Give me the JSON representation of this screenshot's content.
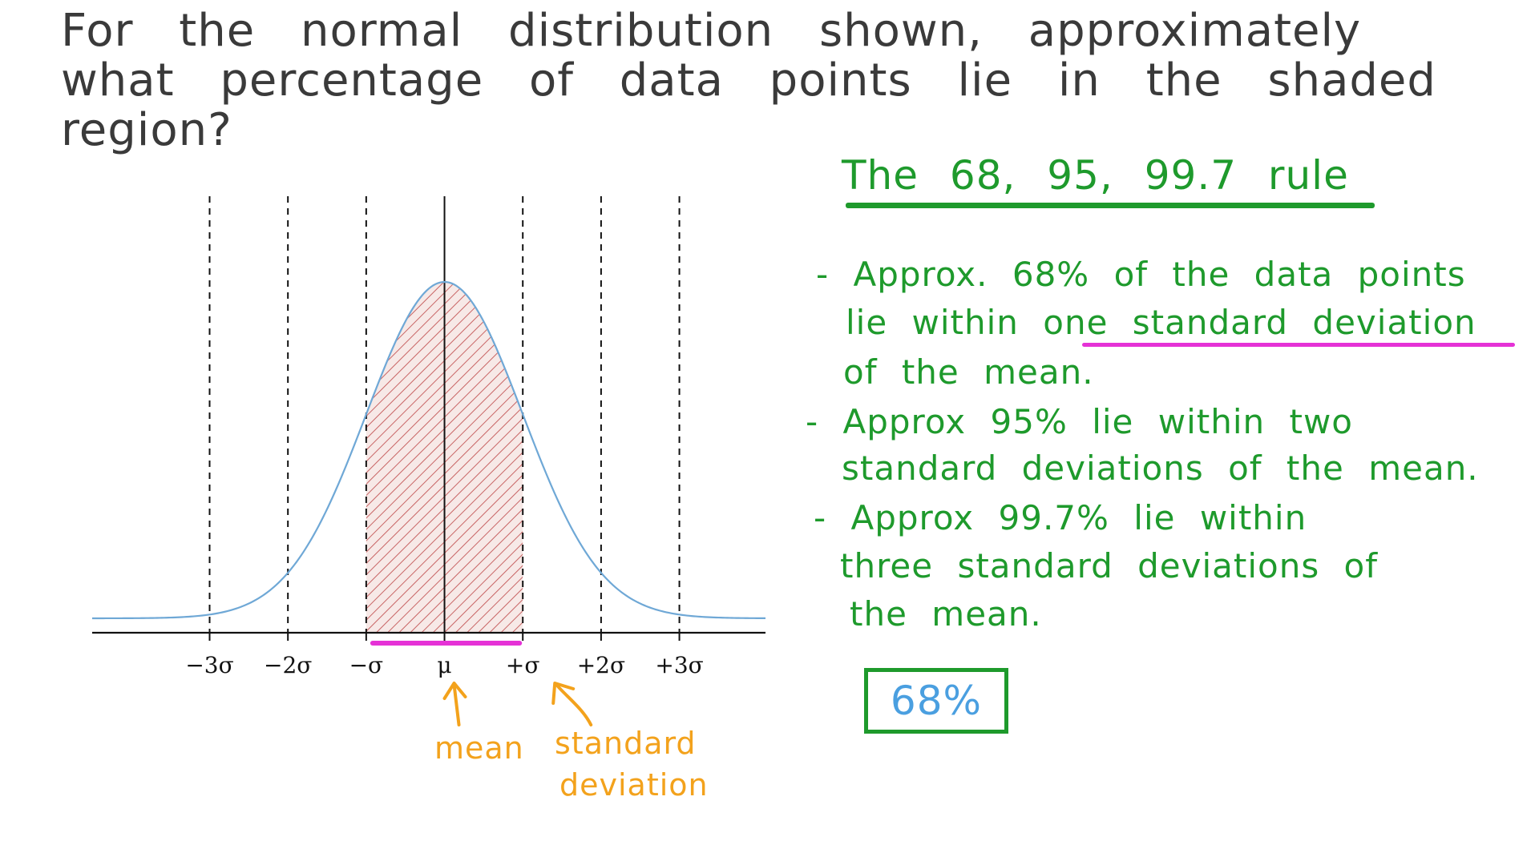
{
  "question": "For the normal distribution shown, approximately what percentage of data points lie in the shaded region?",
  "chart_data": {
    "type": "area",
    "title": "",
    "xlabel": "",
    "ylabel": "",
    "distribution": "normal",
    "mean": 0,
    "sd": 1,
    "xlim": [
      -4.5,
      4.1
    ],
    "ylim": [
      0,
      0.42
    ],
    "x_ticks": [
      -3,
      -2,
      -1,
      0,
      1,
      2,
      3
    ],
    "tick_labels": [
      "−3σ",
      "−2σ",
      "−σ",
      "μ",
      "+σ",
      "+2σ",
      "+3σ"
    ],
    "dashed_lines_at": [
      -3,
      -2,
      -1,
      1,
      2,
      3
    ],
    "solid_line_at": 0,
    "shaded_region": [
      -1,
      1
    ],
    "highlight_segment": [
      -1,
      1
    ],
    "colors": {
      "curve": "#6fa8d6",
      "shade": "#c86464",
      "shade_fill": "#f6e6e4",
      "highlight": "#e532d6",
      "axis": "#111111"
    }
  },
  "annotations": {
    "mean_label": "mean",
    "sd_label_line1": "standard",
    "sd_label_line2": "deviation",
    "arrow_color": "#f3a21c"
  },
  "notes": {
    "title": "The 68, 95, 99.7 rule",
    "bullet1": [
      "- Approx. 68% of the data points",
      "lie within one standard deviation",
      "of the mean."
    ],
    "bullet2": [
      "- Approx 95% lie within two",
      "standard deviations of the mean."
    ],
    "bullet3": [
      "- Approx 99.7% lie within",
      "three standard deviations of",
      "the mean."
    ],
    "answer": "68%"
  }
}
